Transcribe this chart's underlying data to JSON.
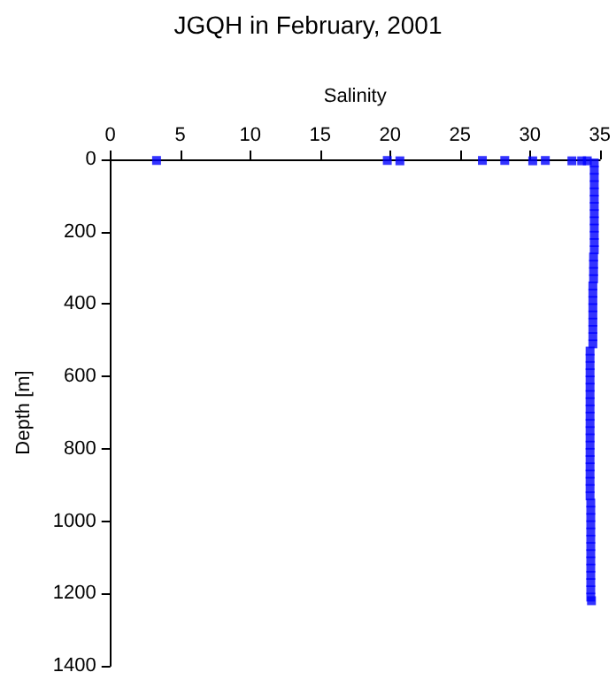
{
  "chart_data": {
    "type": "scatter",
    "title": "JGQH in February, 2001",
    "xlabel": "Salinity",
    "ylabel": "Depth [m]",
    "xlim": [
      0,
      35
    ],
    "xticks": [
      0,
      5,
      10,
      15,
      20,
      25,
      30,
      35
    ],
    "ylim": [
      1400,
      0
    ],
    "yticks": [
      0,
      200,
      400,
      600,
      800,
      1000,
      1200,
      1400
    ],
    "grid": false,
    "marker": "square",
    "series": [
      {
        "color": "#0000ff",
        "x": [
          3.3,
          19.8,
          20.7,
          26.6,
          28.2,
          30.2,
          31.1,
          33.0,
          33.7,
          34.1,
          34.6,
          34.6,
          34.6,
          34.6,
          34.6,
          34.6,
          34.6,
          34.6,
          34.6,
          34.6,
          34.6,
          34.6,
          34.6,
          34.55,
          34.55,
          34.55,
          34.55,
          34.5,
          34.5,
          34.5,
          34.5,
          34.5,
          34.5,
          34.5,
          34.5,
          34.5,
          34.3,
          34.3,
          34.3,
          34.3,
          34.3,
          34.3,
          34.3,
          34.3,
          34.3,
          34.3,
          34.3,
          34.3,
          34.3,
          34.3,
          34.3,
          34.3,
          34.3,
          34.3,
          34.3,
          34.3,
          34.3,
          34.35,
          34.35,
          34.35,
          34.35,
          34.35,
          34.35,
          34.35,
          34.35,
          34.35,
          34.35,
          34.35,
          34.35,
          34.35,
          34.35,
          34.4
        ],
        "values": [
          3,
          3,
          4,
          3,
          3,
          4,
          3,
          4,
          4,
          4,
          10,
          30,
          50,
          70,
          90,
          110,
          130,
          150,
          170,
          190,
          210,
          230,
          250,
          270,
          290,
          310,
          330,
          350,
          370,
          390,
          410,
          430,
          450,
          470,
          490,
          510,
          530,
          550,
          570,
          590,
          610,
          630,
          650,
          670,
          690,
          710,
          730,
          750,
          770,
          790,
          810,
          830,
          850,
          870,
          890,
          910,
          930,
          950,
          970,
          990,
          1010,
          1030,
          1050,
          1070,
          1090,
          1110,
          1130,
          1150,
          1170,
          1190,
          1210,
          1220
        ]
      }
    ]
  }
}
